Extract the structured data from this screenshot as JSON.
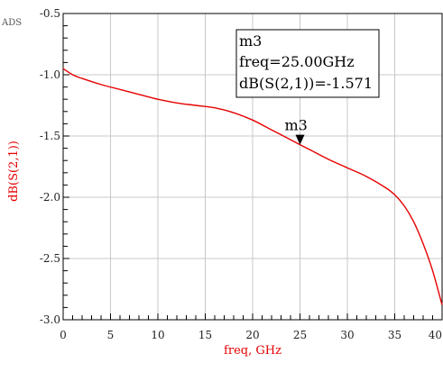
{
  "tool_label": "ADS",
  "chart_data": {
    "type": "line",
    "title": "",
    "xlabel": "freq, GHz",
    "ylabel": "dB(S(2,1))",
    "xlim": [
      0,
      40
    ],
    "ylim": [
      -3.0,
      -0.5
    ],
    "x_ticks": [
      "0",
      "5",
      "10",
      "15",
      "20",
      "25",
      "30",
      "35",
      "40"
    ],
    "y_ticks": [
      "-0.5",
      "-1.0",
      "-1.5",
      "-2.0",
      "-2.5",
      "-3.0"
    ],
    "grid": true,
    "line_color": "#e60000",
    "series": [
      {
        "x": [
          0,
          1,
          2,
          4,
          6,
          8,
          10,
          12,
          14,
          16,
          18,
          20,
          22,
          24,
          25,
          26,
          28,
          30,
          32,
          34,
          35,
          36,
          37,
          38,
          39,
          40
        ],
        "y": [
          -0.95,
          -1.0,
          -1.03,
          -1.08,
          -1.12,
          -1.16,
          -1.2,
          -1.23,
          -1.25,
          -1.27,
          -1.31,
          -1.37,
          -1.45,
          -1.53,
          -1.571,
          -1.61,
          -1.69,
          -1.76,
          -1.83,
          -1.92,
          -1.98,
          -2.07,
          -2.2,
          -2.38,
          -2.6,
          -2.88
        ]
      }
    ],
    "marker": {
      "name": "m3",
      "x": 25,
      "y": -1.571,
      "label_freq": "freq=25.00GHz",
      "label_value": "dB(S(2,1))=-1.571"
    }
  }
}
